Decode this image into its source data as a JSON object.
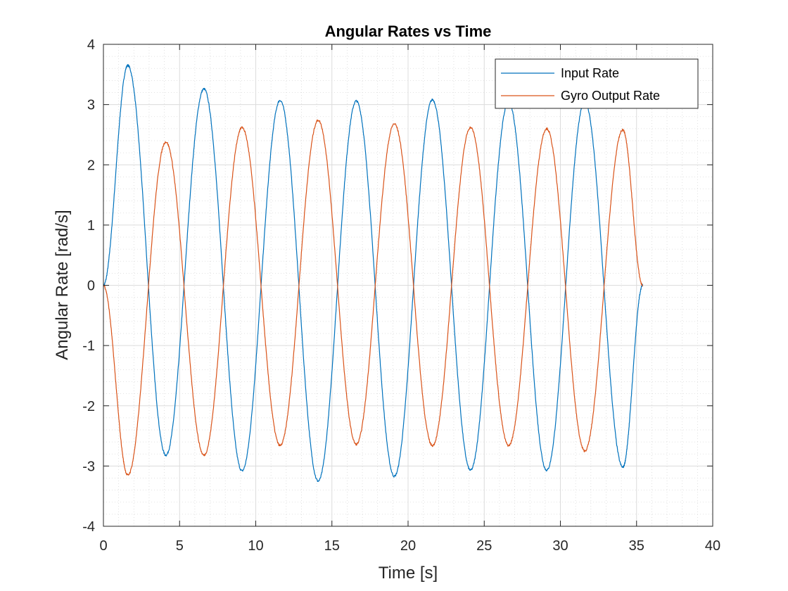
{
  "chart_data": {
    "type": "line",
    "title": "Angular Rates vs Time",
    "xlabel": "Time [s]",
    "ylabel": "Angular Rate [rad/s]",
    "xlim": [
      0,
      40
    ],
    "ylim": [
      -4,
      4
    ],
    "xticks": [
      "0",
      "5",
      "10",
      "15",
      "20",
      "25",
      "30",
      "35",
      "40"
    ],
    "yticks": [
      "4",
      "3",
      "2",
      "1",
      "0",
      "-1",
      "-2",
      "-3",
      "-4"
    ],
    "grid": true,
    "minor_grid": true,
    "legend_position": "top-right",
    "series": [
      {
        "name": "Input Rate",
        "color": "#0072BD",
        "x": [
          0,
          1.6,
          4.1,
          6.6,
          9.1,
          11.6,
          14.1,
          16.6,
          19.1,
          21.6,
          24.1,
          26.6,
          29.1,
          31.6,
          34.1,
          35.4
        ],
        "values": [
          0,
          3.65,
          -2.82,
          3.26,
          -3.08,
          3.07,
          -3.25,
          3.06,
          -3.17,
          3.08,
          -3.07,
          3.05,
          -3.07,
          3.05,
          -3.02,
          0
        ]
      },
      {
        "name": "Gyro Output Rate",
        "color": "#D95319",
        "x": [
          0,
          1.6,
          4.1,
          6.6,
          9.1,
          11.6,
          14.1,
          16.6,
          19.1,
          21.6,
          24.1,
          26.6,
          29.1,
          31.6,
          34.1,
          35.4
        ],
        "values": [
          0,
          -3.15,
          2.38,
          -2.82,
          2.62,
          -2.66,
          2.74,
          -2.64,
          2.68,
          -2.66,
          2.62,
          -2.66,
          2.6,
          -2.75,
          2.58,
          0
        ]
      }
    ]
  }
}
